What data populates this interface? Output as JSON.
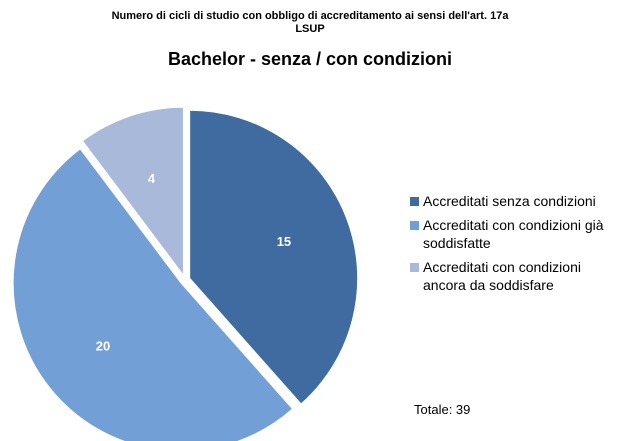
{
  "chart_data": {
    "type": "pie",
    "title": "Numero di cicli di studio con obbligo di accreditamento ai sensi dell'art. 17a LSUP",
    "subtitle": "Bachelor - senza / con condizioni",
    "categories": [
      "Accreditati senza condizioni",
      "Accreditati con condizioni già soddisfatte",
      "Accreditati con condizioni ancora da soddisfare"
    ],
    "values": [
      15,
      20,
      4
    ],
    "colors": [
      "#3f6ba1",
      "#719fd6",
      "#a8b9d9"
    ],
    "annotation": "Totale: 39",
    "legend": "right"
  }
}
